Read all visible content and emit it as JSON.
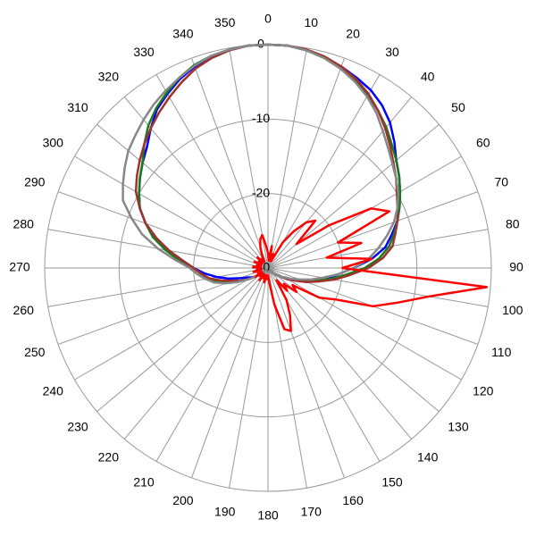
{
  "chart_data": {
    "type": "polar",
    "x": [
      0,
      5,
      10,
      15,
      20,
      25,
      30,
      35,
      40,
      45,
      50,
      55,
      60,
      65,
      70,
      75,
      80,
      85,
      90,
      95,
      100,
      105,
      110,
      115,
      120,
      125,
      130,
      135,
      140,
      145,
      150,
      155,
      160,
      165,
      170,
      175,
      180,
      185,
      190,
      195,
      200,
      205,
      210,
      215,
      220,
      225,
      230,
      235,
      240,
      245,
      250,
      255,
      260,
      265,
      270,
      275,
      280,
      285,
      290,
      295,
      300,
      305,
      310,
      315,
      320,
      325,
      330,
      335,
      340,
      345,
      350,
      355
    ],
    "xticks": [
      0,
      10,
      20,
      30,
      40,
      50,
      60,
      70,
      80,
      90,
      100,
      110,
      120,
      130,
      140,
      150,
      160,
      170,
      180,
      190,
      200,
      210,
      220,
      230,
      240,
      250,
      260,
      270,
      280,
      290,
      300,
      310,
      320,
      330,
      340,
      350
    ],
    "ylim": [
      -30,
      0
    ],
    "yticks": [
      -30,
      -20,
      -10,
      0
    ],
    "grid": true,
    "series": [
      {
        "color": "#0000ff",
        "values": [
          0,
          0,
          -0.3,
          -0.7,
          -1.2,
          -1.8,
          -2.4,
          -3.3,
          -4.5,
          -6,
          -7.5,
          -8.5,
          -9.5,
          -10.5,
          -11.5,
          -12.8,
          -14,
          -16,
          -18.5,
          -20.5,
          -22,
          -23.5,
          -25,
          -26,
          -27,
          -28,
          -28.5,
          -29,
          -29.5,
          -29.5,
          -29.5,
          -29.5,
          -29.5,
          -29.5,
          -29.5,
          -29.5,
          -29.5,
          -29.5,
          -29.5,
          -29.5,
          -29.5,
          -29.5,
          -29.5,
          -29.5,
          -29.5,
          -29,
          -28.5,
          -28,
          -27.5,
          -27,
          -26,
          -24.5,
          -23,
          -21.5,
          -20,
          -18.5,
          -16.5,
          -14.5,
          -12.5,
          -11,
          -10,
          -9,
          -8,
          -7,
          -5.5,
          -4,
          -3,
          -2,
          -1.2,
          -0.6,
          -0.2,
          0
        ]
      },
      {
        "color": "#1a7a1a",
        "values": [
          0,
          0,
          -0.3,
          -0.8,
          -1.5,
          -2.3,
          -3.2,
          -4.2,
          -5.3,
          -6.5,
          -7.5,
          -8.5,
          -9.5,
          -10.5,
          -11.5,
          -12.5,
          -13.5,
          -15,
          -17,
          -19.5,
          -21.5,
          -23.5,
          -25,
          -26.5,
          -27.5,
          -28,
          -28.5,
          -29,
          -29.5,
          -29.5,
          -29.5,
          -29.5,
          -29.5,
          -29.5,
          -29.5,
          -29.5,
          -29.5,
          -29.5,
          -29.5,
          -29.5,
          -29.5,
          -29.5,
          -29.5,
          -29.5,
          -29.5,
          -29,
          -28.5,
          -28,
          -27,
          -26,
          -24.5,
          -23,
          -21.5,
          -20.5,
          -19.5,
          -18,
          -16,
          -14,
          -12.5,
          -11,
          -10,
          -9,
          -8,
          -6.5,
          -5,
          -3.8,
          -2.8,
          -1.8,
          -1,
          -0.5,
          -0.2,
          0
        ]
      },
      {
        "color": "#a0322d",
        "values": [
          0,
          0,
          -0.2,
          -0.6,
          -1.2,
          -2,
          -3,
          -4.2,
          -5.5,
          -6.8,
          -8,
          -9,
          -10,
          -10.8,
          -11.5,
          -12.3,
          -13,
          -14.5,
          -16.5,
          -19,
          -21,
          -23,
          -24.5,
          -26,
          -27,
          -28,
          -28.5,
          -29,
          -29.5,
          -29.5,
          -29.5,
          -29.5,
          -29.5,
          -29.5,
          -29.5,
          -29.5,
          -29.5,
          -29.5,
          -29.5,
          -29.5,
          -29.5,
          -29.5,
          -29.5,
          -29.5,
          -29.5,
          -29,
          -28.5,
          -28,
          -27,
          -26,
          -25,
          -23.5,
          -22,
          -21,
          -20,
          -18.5,
          -16.5,
          -14.5,
          -12.5,
          -11,
          -9.5,
          -8.5,
          -7.5,
          -6.5,
          -5.5,
          -4.5,
          -3.5,
          -2.5,
          -1.5,
          -0.8,
          -0.3,
          0
        ]
      },
      {
        "color": "#888888",
        "values": [
          0,
          0,
          -0.3,
          -0.8,
          -1.5,
          -2.4,
          -3.4,
          -4.6,
          -6,
          -7.2,
          -8.2,
          -9,
          -9.8,
          -10.8,
          -12,
          -13.5,
          -15,
          -16.5,
          -18.5,
          -20.5,
          -22.5,
          -24,
          -25.5,
          -26.5,
          -27.5,
          -28,
          -28.5,
          -29,
          -29.5,
          -29.5,
          -29.5,
          -29.5,
          -29.5,
          -29.5,
          -29.5,
          -29.5,
          -29.5,
          -29.5,
          -29.5,
          -29.5,
          -29.5,
          -29.5,
          -29.5,
          -29.5,
          -29.5,
          -29,
          -28.5,
          -28,
          -27,
          -25.5,
          -24,
          -22.5,
          -21.5,
          -20.5,
          -19.5,
          -17.5,
          -15,
          -12.5,
          -10.5,
          -8.5,
          -7.5,
          -6.5,
          -5.5,
          -4.8,
          -4,
          -3.2,
          -2.5,
          -1.8,
          -1.1,
          -0.5,
          -0.2,
          0
        ]
      },
      {
        "color": "#ff0000",
        "values": [
          -28,
          -29,
          -27,
          -29,
          -28,
          -29,
          -26,
          -24,
          -22,
          -21,
          -25,
          -20,
          -14,
          -12,
          -20,
          -17,
          -22,
          -16,
          -20,
          -0.5,
          -8,
          -12,
          -15,
          -20,
          -22,
          -26,
          -25,
          -27,
          -26,
          -28,
          -25,
          -23,
          -21,
          -21.5,
          -25,
          -28,
          -29,
          -28.5,
          -29,
          -28,
          -29,
          -28.5,
          -29,
          -28,
          -29,
          -28.5,
          -29,
          -28,
          -29,
          -28.5,
          -29,
          -28,
          -29,
          -28.5,
          -29,
          -28,
          -29,
          -28.5,
          -29,
          -28,
          -29,
          -28.5,
          -29,
          -28,
          -29,
          -28.5,
          -29,
          -28,
          -27,
          -26,
          -25.5,
          -27
        ]
      }
    ]
  }
}
